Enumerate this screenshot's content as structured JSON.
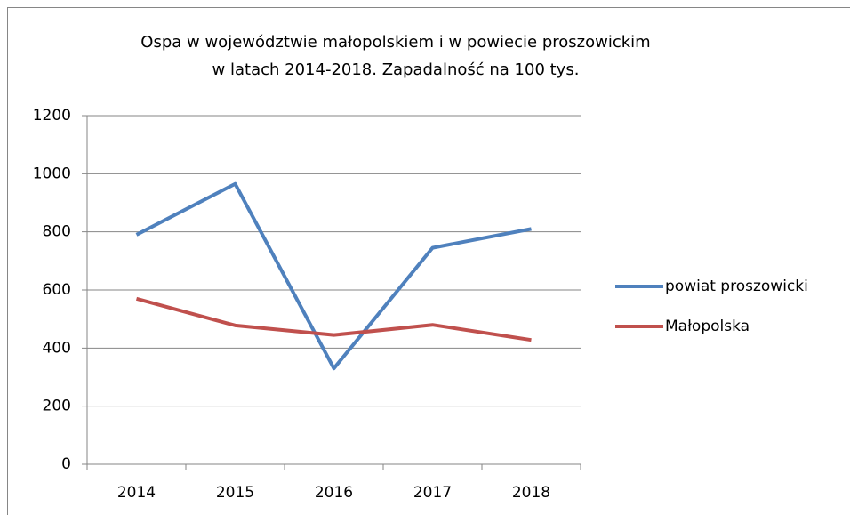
{
  "chart_data": {
    "type": "line",
    "title": [
      "Ospa w województwie małopolskiem i w powiecie proszowickim",
      "w latach 2014-2018. Zapadalność na 100 tys."
    ],
    "categories": [
      "2014",
      "2015",
      "2016",
      "2017",
      "2018"
    ],
    "series": [
      {
        "name": "powiat proszowicki",
        "color": "#4f81bd",
        "values": [
          790,
          965,
          330,
          745,
          810
        ]
      },
      {
        "name": "Małopolska",
        "color": "#c0504d",
        "values": [
          570,
          478,
          445,
          480,
          428
        ]
      }
    ],
    "ylim": [
      0,
      1200
    ],
    "yticks": [
      0,
      200,
      400,
      600,
      800,
      1000,
      1200
    ],
    "grid": true,
    "legend": "right"
  }
}
